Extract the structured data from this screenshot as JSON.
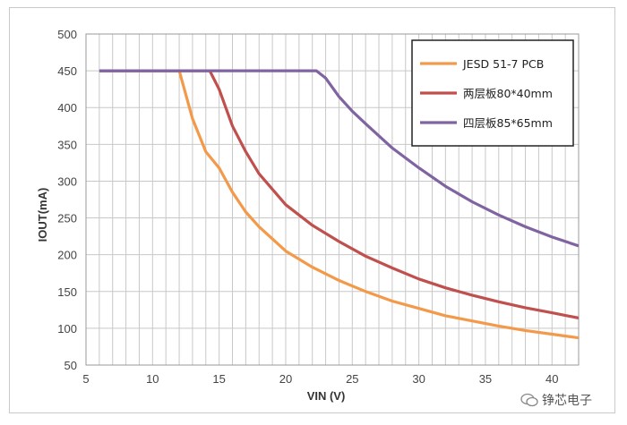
{
  "watermark": "铮芯电子",
  "chart_data": {
    "type": "line",
    "xlabel": "VIN (V)",
    "ylabel": "IOUT(mA)",
    "xlim": [
      5,
      42
    ],
    "ylim": [
      50,
      500
    ],
    "xticks": [
      5,
      10,
      15,
      20,
      25,
      30,
      35,
      40
    ],
    "yticks": [
      50,
      100,
      150,
      200,
      250,
      300,
      350,
      400,
      450,
      500
    ],
    "grid": true,
    "legend_position": "top-right",
    "series": [
      {
        "name": "JESD 51-7 PCB",
        "color": "#f39a4a",
        "points": [
          [
            6,
            450
          ],
          [
            12,
            450
          ],
          [
            13,
            385
          ],
          [
            14,
            340
          ],
          [
            15,
            318
          ],
          [
            16,
            285
          ],
          [
            17,
            258
          ],
          [
            18,
            238
          ],
          [
            20,
            205
          ],
          [
            22,
            183
          ],
          [
            24,
            165
          ],
          [
            26,
            150
          ],
          [
            28,
            137
          ],
          [
            30,
            127
          ],
          [
            32,
            117
          ],
          [
            34,
            110
          ],
          [
            36,
            103
          ],
          [
            38,
            97
          ],
          [
            40,
            92
          ],
          [
            42,
            87
          ]
        ]
      },
      {
        "name": "两层板80*40mm",
        "color": "#c0504d",
        "points": [
          [
            6,
            450
          ],
          [
            14.3,
            450
          ],
          [
            15,
            425
          ],
          [
            16,
            375
          ],
          [
            17,
            340
          ],
          [
            18,
            310
          ],
          [
            20,
            268
          ],
          [
            22,
            240
          ],
          [
            24,
            218
          ],
          [
            26,
            198
          ],
          [
            28,
            182
          ],
          [
            30,
            167
          ],
          [
            32,
            155
          ],
          [
            34,
            145
          ],
          [
            36,
            136
          ],
          [
            38,
            128
          ],
          [
            40,
            121
          ],
          [
            42,
            114
          ]
        ]
      },
      {
        "name": "四层板85*65mm",
        "color": "#8064a2",
        "points": [
          [
            6,
            450
          ],
          [
            22.3,
            450
          ],
          [
            23,
            440
          ],
          [
            24,
            415
          ],
          [
            25,
            395
          ],
          [
            26,
            378
          ],
          [
            28,
            345
          ],
          [
            30,
            318
          ],
          [
            32,
            293
          ],
          [
            34,
            272
          ],
          [
            36,
            254
          ],
          [
            38,
            238
          ],
          [
            40,
            224
          ],
          [
            42,
            212
          ]
        ]
      }
    ]
  }
}
